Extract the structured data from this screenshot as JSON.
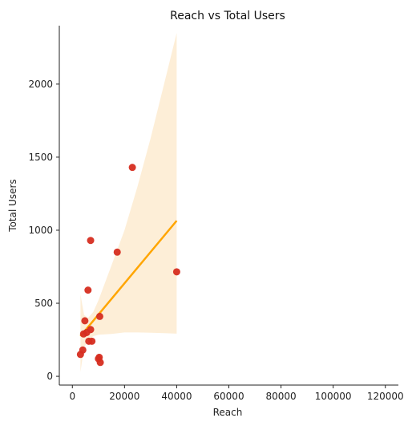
{
  "chart_data": {
    "type": "scatter",
    "title": "Reach vs Total Users",
    "xlabel": "Reach",
    "ylabel": "Total Users",
    "xlim": [
      -5000,
      125000
    ],
    "ylim": [
      -60,
      2400
    ],
    "xticks": [
      0,
      20000,
      40000,
      60000,
      80000,
      100000,
      120000
    ],
    "yticks": [
      0,
      500,
      1000,
      1500,
      2000
    ],
    "grid": false,
    "point_color": "#d62d20",
    "line_color": "#ffa500",
    "band_color": "#fdebd0",
    "points": [
      {
        "x": 3100,
        "y": 150
      },
      {
        "x": 4000,
        "y": 180
      },
      {
        "x": 4300,
        "y": 290
      },
      {
        "x": 4800,
        "y": 380
      },
      {
        "x": 5500,
        "y": 300
      },
      {
        "x": 6000,
        "y": 590
      },
      {
        "x": 6300,
        "y": 240
      },
      {
        "x": 7000,
        "y": 320
      },
      {
        "x": 7000,
        "y": 930
      },
      {
        "x": 7500,
        "y": 240
      },
      {
        "x": 10000,
        "y": 120
      },
      {
        "x": 10300,
        "y": 130
      },
      {
        "x": 10500,
        "y": 410
      },
      {
        "x": 10700,
        "y": 95
      },
      {
        "x": 17200,
        "y": 850
      },
      {
        "x": 23000,
        "y": 1430
      },
      {
        "x": 40000,
        "y": 715
      }
    ],
    "regression": {
      "x": [
        3100,
        40000
      ],
      "y": [
        275,
        1065
      ]
    },
    "confidence_band": {
      "x": [
        3100,
        4500,
        6000,
        8000,
        10000,
        15000,
        20000,
        25000,
        30000,
        35000,
        40000
      ],
      "lower": [
        30,
        200,
        240,
        275,
        285,
        290,
        300,
        300,
        298,
        295,
        292
      ],
      "upper": [
        560,
        420,
        400,
        440,
        520,
        760,
        1000,
        1300,
        1630,
        1990,
        2350
      ]
    }
  }
}
